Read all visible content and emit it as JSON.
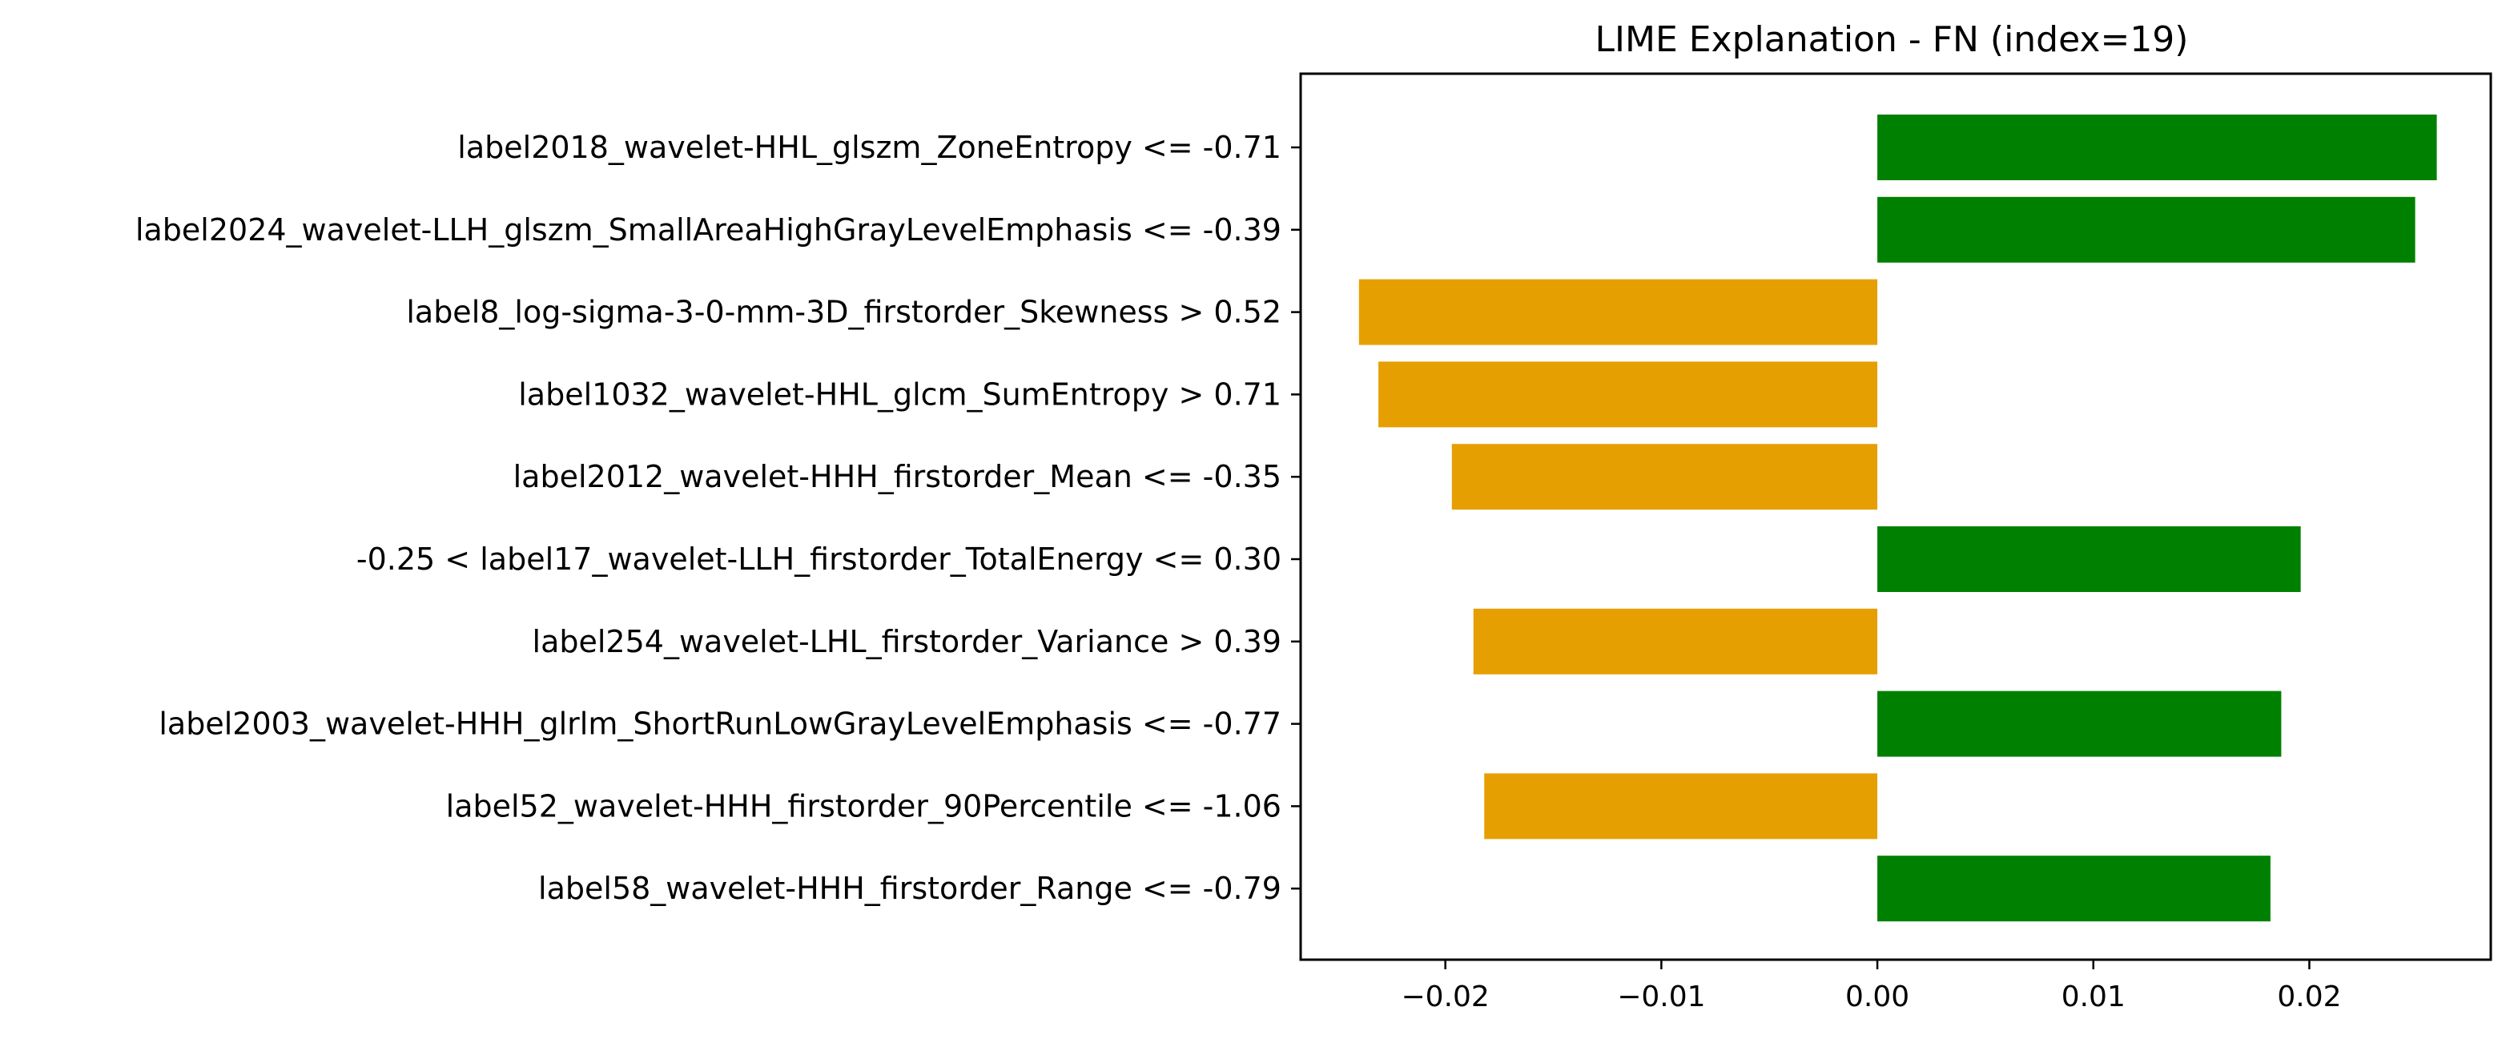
{
  "chart_data": {
    "type": "bar",
    "orientation": "horizontal",
    "title": "LIME Explanation - FN (index=19)",
    "xlabel": "",
    "ylabel": "",
    "xlim": [
      -0.0267,
      0.0284
    ],
    "xticks": [
      -0.02,
      -0.01,
      0.0,
      0.01,
      0.02
    ],
    "xtick_labels": [
      "−0.02",
      "−0.01",
      "0.00",
      "0.01",
      "0.02"
    ],
    "grid": false,
    "categories": [
      "label2018_wavelet-HHL_glszm_ZoneEntropy <= -0.71",
      "label2024_wavelet-LLH_glszm_SmallAreaHighGrayLevelEmphasis <= -0.39",
      "label8_log-sigma-3-0-mm-3D_firstorder_Skewness > 0.52",
      "label1032_wavelet-HHL_glcm_SumEntropy > 0.71",
      "label2012_wavelet-HHH_firstorder_Mean <= -0.35",
      "-0.25 < label17_wavelet-LLH_firstorder_TotalEnergy <= 0.30",
      "label254_wavelet-LHL_firstorder_Variance > 0.39",
      "label2003_wavelet-HHH_glrlm_ShortRunLowGrayLevelEmphasis <= -0.77",
      "label52_wavelet-HHH_firstorder_90Percentile <= -1.06",
      "label58_wavelet-HHH_firstorder_Range <= -0.79"
    ],
    "values": [
      0.0259,
      0.0249,
      -0.024,
      -0.0231,
      -0.0197,
      0.0196,
      -0.0187,
      0.0187,
      -0.0182,
      0.0182
    ],
    "colors": {
      "positive": "#008000",
      "negative": "#e69f00"
    }
  }
}
